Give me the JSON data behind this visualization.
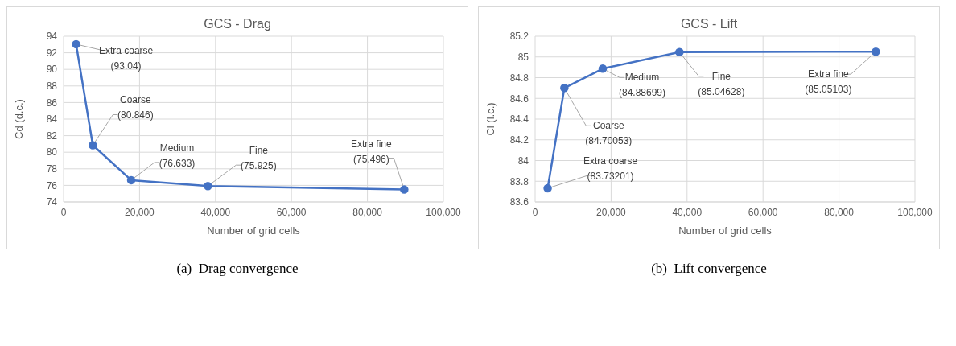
{
  "chart_data": [
    {
      "type": "line",
      "title": "GCS - Drag",
      "xlabel": "Number of grid cells",
      "ylabel": "Cd (d.c.)",
      "x": [
        3300,
        7700,
        17800,
        38000,
        89700
      ],
      "series": [
        {
          "color": "#4472c4",
          "values": [
            93.04,
            80.846,
            76.633,
            75.925,
            75.496
          ],
          "value_labels": [
            "(93.04)",
            "(80.846)",
            "(76.633)",
            "(75.925)",
            "(75.496)"
          ]
        }
      ],
      "xlim": [
        0,
        100000
      ],
      "xticks": [
        0,
        {
          "value": 20000,
          "label": "20,000"
        },
        {
          "value": 40000,
          "label": "40,000"
        },
        {
          "value": 60000,
          "label": "60,000"
        },
        {
          "value": 80000,
          "label": "80,000"
        },
        {
          "value": 100000,
          "label": "100,000"
        }
      ],
      "ylim": [
        74,
        94
      ],
      "yticks": [
        74,
        76,
        78,
        80,
        82,
        84,
        86,
        88,
        90,
        92,
        94
      ],
      "grid": true,
      "marker": "circle",
      "annotations": [
        {
          "text": "Extra coarse",
          "x": 3300,
          "y": 93.04
        },
        {
          "text": "Coarse",
          "x": 7700,
          "y": 80.846
        },
        {
          "text": "Medium",
          "x": 17800,
          "y": 76.633
        },
        {
          "text": "Fine",
          "x": 38000,
          "y": 75.925
        },
        {
          "text": "Extra fine",
          "x": 89700,
          "y": 75.496
        },
        "(a)  Drag convergence"
      ]
    },
    {
      "type": "line",
      "title": "GCS - Lift",
      "xlabel": "Number of grid cells",
      "ylabel": "Cl (l.c.)",
      "x": [
        3300,
        7700,
        17800,
        38000,
        89700
      ],
      "series": [
        {
          "color": "#4472c4",
          "values": [
            83.73201,
            84.70053,
            84.88699,
            85.04628,
            85.05103
          ],
          "value_labels": [
            "(83.73201)",
            "(84.70053)",
            "(84.88699)",
            "(85.04628)",
            "(85.05103)"
          ]
        }
      ],
      "xlim": [
        0,
        100000
      ],
      "xticks": [
        0,
        {
          "value": 20000,
          "label": "20,000"
        },
        {
          "value": 40000,
          "label": "40,000"
        },
        {
          "value": 60000,
          "label": "60,000"
        },
        {
          "value": 80000,
          "label": "80,000"
        },
        {
          "value": 100000,
          "label": "100,000"
        }
      ],
      "ylim": [
        83.6,
        85.2
      ],
      "yticks": [
        83.6,
        83.8,
        84,
        84.2,
        84.4,
        84.6,
        84.8,
        85,
        85.2
      ],
      "grid": true,
      "marker": "circle",
      "annotations": [
        {
          "text": "Extra coarse",
          "x": 3300,
          "y": 83.73201
        },
        {
          "text": "Coarse",
          "x": 7700,
          "y": 84.70053
        },
        {
          "text": "Medium",
          "x": 17800,
          "y": 84.88699
        },
        {
          "text": "Fine",
          "x": 38000,
          "y": 85.04628
        },
        {
          "text": "Extra fine",
          "x": 89700,
          "y": 85.05103
        },
        "(b)  Lift convergence"
      ]
    }
  ]
}
